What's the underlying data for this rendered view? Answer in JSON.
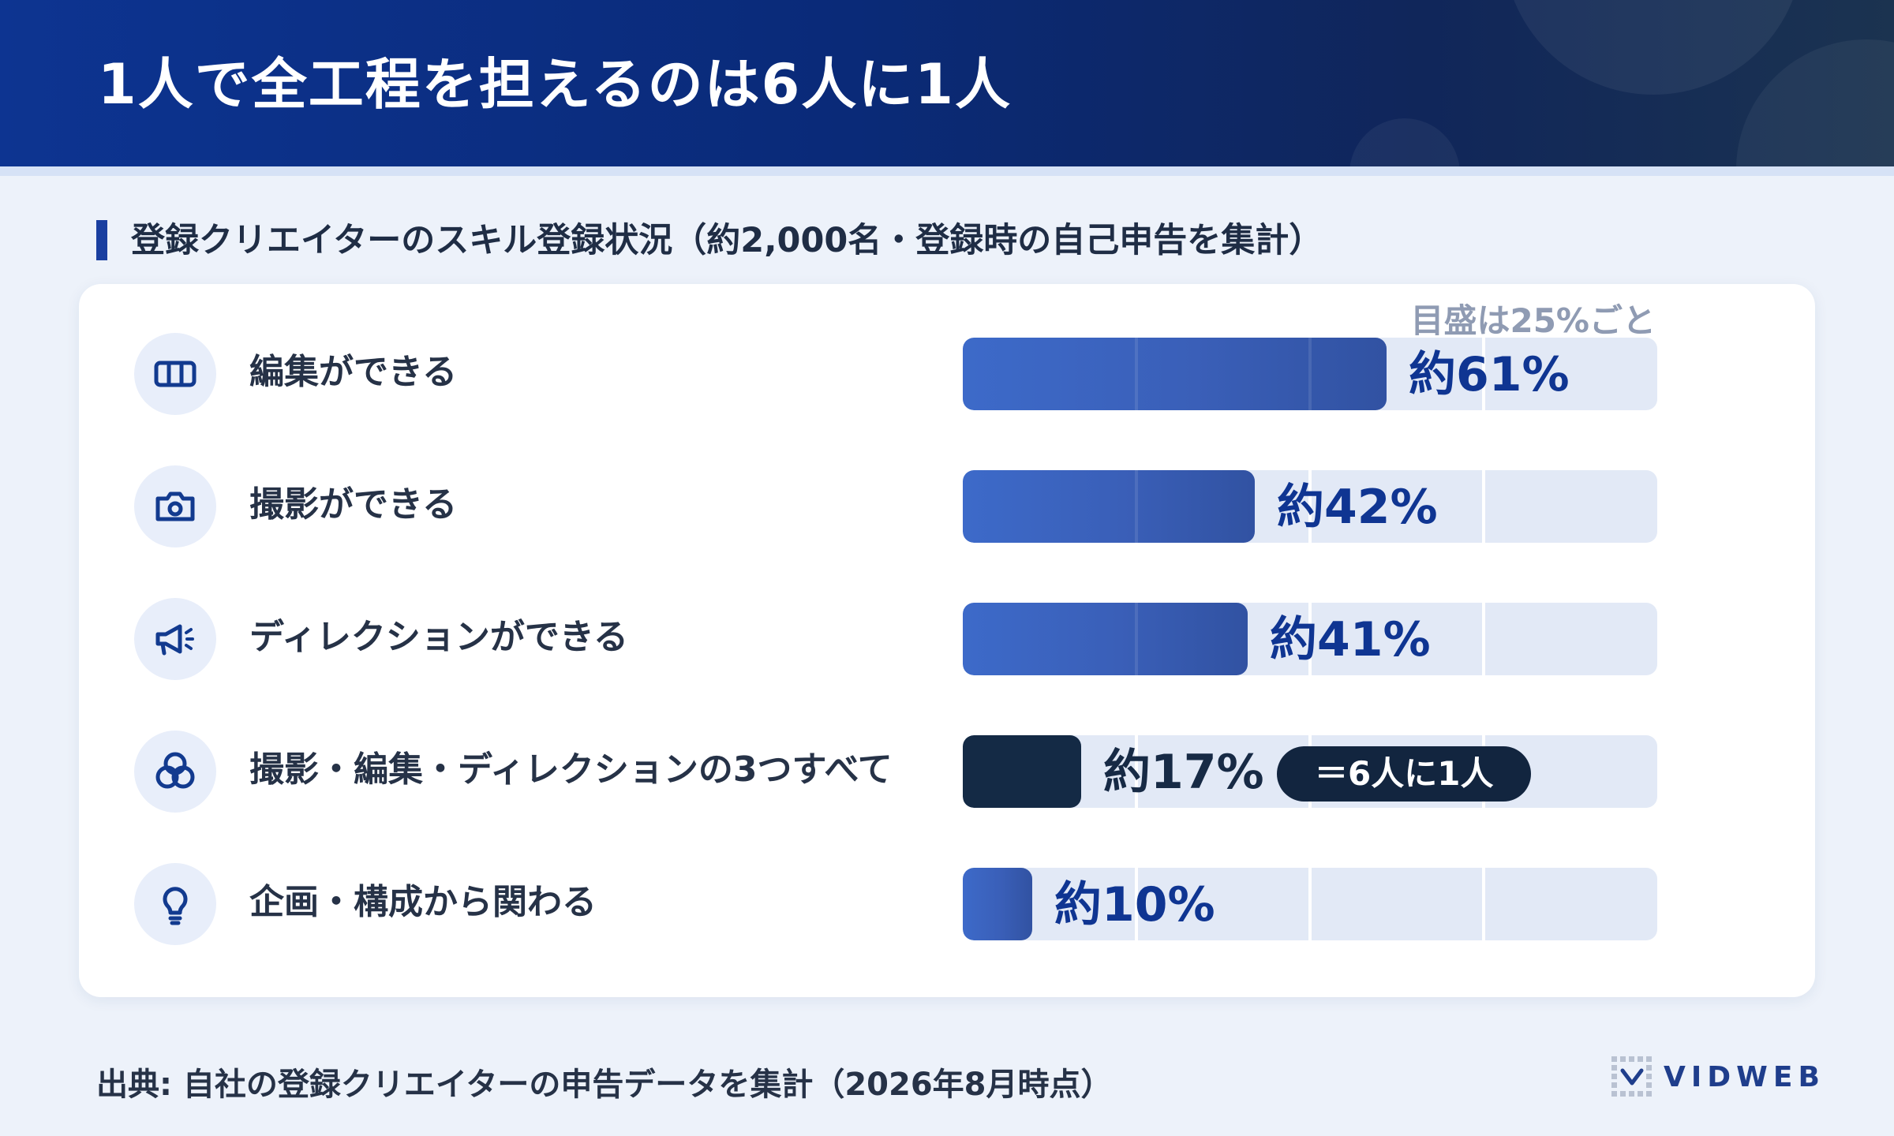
{
  "header": {
    "title": "1人で全工程を担えるのは6人に1人"
  },
  "section": {
    "label": "登録クリエイターのスキル登録状況（約2,000名・登録時の自己申告を集計）"
  },
  "chart_data": {
    "type": "bar",
    "orientation": "horizontal",
    "title": "登録クリエイターのスキル登録状況（約2,000名・登録時の自己申告を集計）",
    "scale_note": "目盛は25%ごと",
    "xlim": [
      0,
      100
    ],
    "grid_step": 25,
    "unit": "%",
    "categories": [
      "編集ができる",
      "撮影ができる",
      "ディレクションができる",
      "撮影・編集・ディレクションの3つすべて",
      "企画・構成から関わる"
    ],
    "values": [
      61,
      42,
      41,
      17,
      10
    ],
    "labels": [
      "約61%",
      "約42%",
      "約41%",
      "約17%",
      "約10%"
    ],
    "icons": [
      "film-strip-icon",
      "camera-icon",
      "megaphone-icon",
      "triple-circle-icon",
      "lightbulb-icon"
    ],
    "highlight_index": 3,
    "annotation": "＝6人に1人",
    "colors": {
      "bar": "#3a5fb8",
      "highlight_bar": "#142a45",
      "track": "#e2e9f6",
      "value_text": "#0f3592"
    }
  },
  "footer": {
    "source": "出典: 自社の登録クリエイターの申告データを集計（2026年8月時点）",
    "logo_text": "VIDWEB"
  }
}
